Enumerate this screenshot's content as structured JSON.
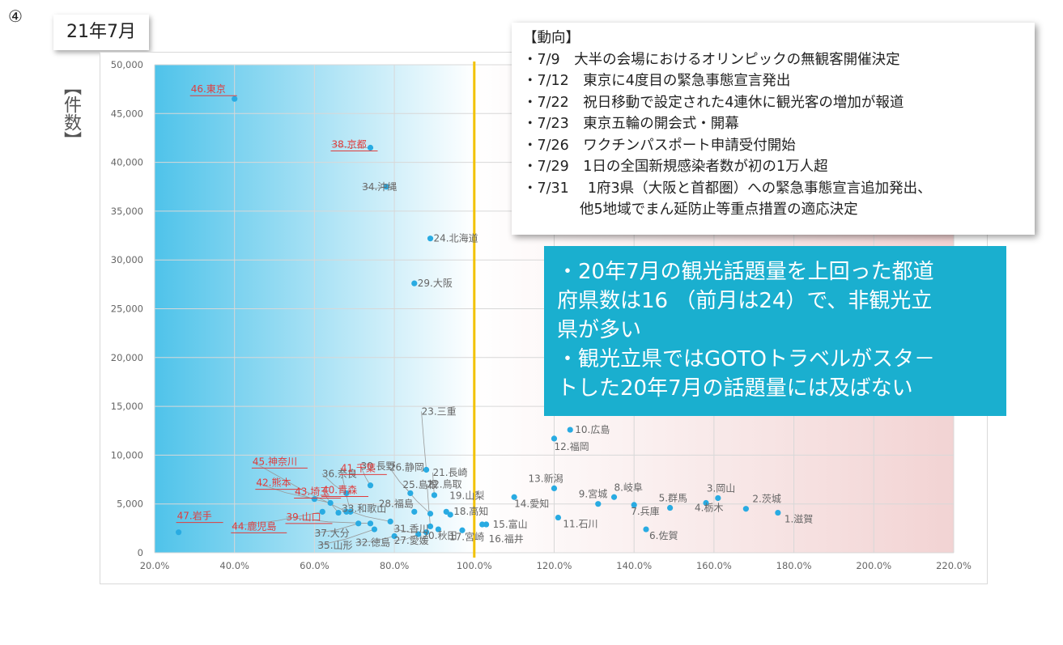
{
  "page": {
    "circled_number": "④",
    "month_label": "21年7月",
    "ylabel": "【件数】"
  },
  "notes": {
    "title": "【動向】",
    "items": [
      "・7/9　大半の会場におけるオリンピックの無観客開催決定",
      "・7/12　東京に4度目の緊急事態宣言発出",
      "・7/22　祝日移動で設定された4連休に観光客の増加が報道",
      "・7/23　東京五輪の開会式・開幕",
      "・7/26　ワクチンパスポート申請受付開始",
      "・7/29　1日の全国新規感染者数が初の1万人超",
      "・7/31　 1府3県（大阪と首都圏）への緊急事態宣言追加発出、",
      "　　　　他5地域でまん延防止等重点措置の適応決定"
    ]
  },
  "callout": {
    "lines": [
      "・20年7月の観光話題量を上回った都道",
      "府県数は16 （前月は24）で、非観光立",
      "県が多い",
      "・観光立県ではGOTOトラベルがスタ－",
      "トした20年7月の話題量には及ばない"
    ]
  },
  "colors": {
    "point": "#29abe2",
    "highlight_label": "#e03c3c",
    "normal_label": "#666666",
    "reference_line": "#f2c200",
    "left_gradient_start": "#4fc3ea",
    "right_region": "#f2d3d3"
  },
  "chart_data": {
    "type": "scatter",
    "xlim": [
      0.2,
      2.2
    ],
    "ylim": [
      0,
      50000
    ],
    "xticks": [
      "20.0%",
      "40.0%",
      "60.0%",
      "80.0%",
      "100.0%",
      "120.0%",
      "140.0%",
      "160.0%",
      "180.0%",
      "200.0%",
      "220.0%"
    ],
    "yticks": [
      "0",
      "5,000",
      "10,000",
      "15,000",
      "20,000",
      "25,000",
      "30,000",
      "35,000",
      "40,000",
      "45,000",
      "50,000"
    ],
    "reference_x": 1.0,
    "grid": true,
    "points": [
      {
        "label": "1.滋賀",
        "x": 1.76,
        "y": 4100,
        "hl": false
      },
      {
        "label": "2.茨城",
        "x": 1.68,
        "y": 4500,
        "hl": false
      },
      {
        "label": "3.岡山",
        "x": 1.61,
        "y": 5600,
        "hl": false
      },
      {
        "label": "4.栃木",
        "x": 1.58,
        "y": 5100,
        "hl": false
      },
      {
        "label": "5.群馬",
        "x": 1.49,
        "y": 4600,
        "hl": false
      },
      {
        "label": "6.佐賀",
        "x": 1.43,
        "y": 2400,
        "hl": false
      },
      {
        "label": "7.兵庫",
        "x": 1.4,
        "y": 4900,
        "hl": false
      },
      {
        "label": "8.岐阜",
        "x": 1.35,
        "y": 5700,
        "hl": false
      },
      {
        "label": "9.宮城",
        "x": 1.31,
        "y": 5000,
        "hl": false
      },
      {
        "label": "10.広島",
        "x": 1.24,
        "y": 12600,
        "hl": false
      },
      {
        "label": "11.石川",
        "x": 1.21,
        "y": 3600,
        "hl": false
      },
      {
        "label": "12.福岡",
        "x": 1.2,
        "y": 11700,
        "hl": false
      },
      {
        "label": "13.新潟",
        "x": 1.2,
        "y": 6600,
        "hl": false
      },
      {
        "label": "14.愛知",
        "x": 1.1,
        "y": 5700,
        "hl": false
      },
      {
        "label": "15.富山",
        "x": 1.03,
        "y": 2900,
        "hl": false
      },
      {
        "label": "16.福井",
        "x": 1.02,
        "y": 2900,
        "hl": false
      },
      {
        "label": "17.宮崎",
        "x": 0.97,
        "y": 2300,
        "hl": false
      },
      {
        "label": "18.高知",
        "x": 0.94,
        "y": 3900,
        "hl": false
      },
      {
        "label": "19.山梨",
        "x": 0.93,
        "y": 4200,
        "hl": false
      },
      {
        "label": "20.秋田",
        "x": 0.91,
        "y": 2400,
        "hl": false
      },
      {
        "label": "21.長崎",
        "x": 0.9,
        "y": 5900,
        "hl": false
      },
      {
        "label": "22.鳥取",
        "x": 0.89,
        "y": 2700,
        "hl": false
      },
      {
        "label": "23.三重",
        "x": 0.88,
        "y": 8500,
        "hl": false
      },
      {
        "label": "24.北海道",
        "x": 0.89,
        "y": 32200,
        "hl": false
      },
      {
        "label": "25.島根",
        "x": 0.89,
        "y": 4000,
        "hl": false
      },
      {
        "label": "26.静岡",
        "x": 0.84,
        "y": 6100,
        "hl": false
      },
      {
        "label": "27.愛媛",
        "x": 0.86,
        "y": 1900,
        "hl": false
      },
      {
        "label": "28.福島",
        "x": 0.85,
        "y": 4200,
        "hl": false
      },
      {
        "label": "29.大阪",
        "x": 0.85,
        "y": 27600,
        "hl": false
      },
      {
        "label": "30.長野",
        "x": 0.74,
        "y": 6900,
        "hl": false
      },
      {
        "label": "31.香川",
        "x": 0.88,
        "y": 2100,
        "hl": false
      },
      {
        "label": "32.徳島",
        "x": 0.8,
        "y": 1700,
        "hl": false
      },
      {
        "label": "33.和歌山",
        "x": 0.79,
        "y": 3200,
        "hl": false
      },
      {
        "label": "34.沖縄",
        "x": 0.78,
        "y": 37500,
        "hl": false
      },
      {
        "label": "35.山形",
        "x": 0.75,
        "y": 2400,
        "hl": false
      },
      {
        "label": "36.奈良",
        "x": 0.68,
        "y": 6100,
        "hl": false
      },
      {
        "label": "37.大分",
        "x": 0.71,
        "y": 3000,
        "hl": false
      },
      {
        "label": "38.京都",
        "x": 0.74,
        "y": 41500,
        "hl": true
      },
      {
        "label": "39.山口",
        "x": 0.74,
        "y": 3000,
        "hl": true
      },
      {
        "label": "41.千葉",
        "x": 0.69,
        "y": 4200,
        "hl": true
      },
      {
        "label": "40.青森",
        "x": 0.66,
        "y": 4100,
        "hl": true
      },
      {
        "label": "42.熊本",
        "x": 0.6,
        "y": 5500,
        "hl": true
      },
      {
        "label": "43.埼玉",
        "x": 0.64,
        "y": 5100,
        "hl": true
      },
      {
        "label": "44.鹿児島",
        "x": 0.62,
        "y": 4200,
        "hl": true
      },
      {
        "label": "45.神奈川",
        "x": 0.68,
        "y": 4200,
        "hl": true
      },
      {
        "label": "46.東京",
        "x": 0.4,
        "y": 46500,
        "hl": true
      },
      {
        "label": "47.岩手",
        "x": 0.26,
        "y": 2100,
        "hl": true
      }
    ]
  }
}
